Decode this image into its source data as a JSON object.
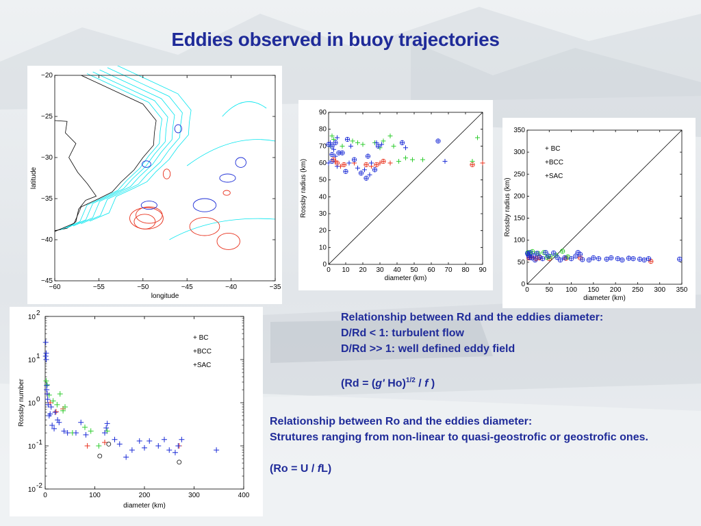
{
  "slide": {
    "title": "Eddies observed in buoy trajectories",
    "note1": {
      "line1": "Relationship between Rd and the eddies diameter:",
      "line2": "D/Rd < 1: turbulent flow",
      "line3": "D/Rd >> 1: well defined eddy field",
      "formula_prefix": "(Rd = (",
      "formula_g": "g'",
      "formula_mid": " Ho)",
      "formula_exp": "1/2",
      "formula_div": " / ",
      "formula_f": "f",
      "formula_end": " )"
    },
    "note2": {
      "line1": "Relationship between Ro and the eddies diameter:",
      "line2": "Strutures ranging from non-linear to quasi-geostrofic or geostrofic ones.",
      "formula_prefix": "(Ro = U / ",
      "formula_f": "f",
      "formula_end": "L)"
    }
  },
  "colors": {
    "BC": "#e8321e",
    "BCC": "#2ecc2e",
    "SAC": "#1a2bd6",
    "title": "#1f2b99",
    "contour": "#00e5ee"
  },
  "chart_data": [
    {
      "type": "map",
      "xlabel": "longitude",
      "ylabel": "latitude",
      "xlim": [
        -60,
        -35
      ],
      "ylim": [
        -45,
        -20
      ],
      "xticks": [
        "−60",
        "−55",
        "−50",
        "−45",
        "−40",
        "−35"
      ],
      "yticks": [
        "−20",
        "−25",
        "−30",
        "−35",
        "−40",
        "−45"
      ],
      "eddies": [
        {
          "group": "BC",
          "lon": -49.6,
          "lat": -37.4,
          "rx": 1.9,
          "ry": 1.3
        },
        {
          "group": "BC",
          "lon": -49.3,
          "lat": -37.0,
          "rx": 1.5,
          "ry": 1.0
        },
        {
          "group": "BC",
          "lon": -49.8,
          "lat": -37.8,
          "rx": 1.2,
          "ry": 0.9
        },
        {
          "group": "BC",
          "lon": -43.0,
          "lat": -38.4,
          "rx": 1.7,
          "ry": 1.1
        },
        {
          "group": "BC",
          "lon": -40.3,
          "lat": -40.2,
          "rx": 1.3,
          "ry": 1.0
        },
        {
          "group": "BC",
          "lon": -47.3,
          "lat": -32.0,
          "rx": 0.4,
          "ry": 0.6
        },
        {
          "group": "BC",
          "lon": -40.5,
          "lat": -34.3,
          "rx": 0.4,
          "ry": 0.3
        },
        {
          "group": "SAC",
          "lon": -49.3,
          "lat": -35.8,
          "rx": 0.9,
          "ry": 0.5
        },
        {
          "group": "SAC",
          "lon": -43.0,
          "lat": -35.8,
          "rx": 1.3,
          "ry": 0.8
        },
        {
          "group": "SAC",
          "lon": -40.4,
          "lat": -32.5,
          "rx": 0.9,
          "ry": 0.5
        },
        {
          "group": "SAC",
          "lon": -38.9,
          "lat": -30.6,
          "rx": 0.6,
          "ry": 0.6
        },
        {
          "group": "SAC",
          "lon": -46.0,
          "lat": -26.5,
          "rx": 0.4,
          "ry": 0.5
        },
        {
          "group": "SAC",
          "lon": -49.6,
          "lat": -30.8,
          "rx": 0.5,
          "ry": 0.4
        }
      ]
    },
    {
      "type": "scatter",
      "xlabel": "diameter (km)",
      "ylabel": "Rossby radius (km)",
      "xlim": [
        0,
        90
      ],
      "ylim": [
        0,
        90
      ],
      "xticks": [
        0,
        10,
        20,
        30,
        40,
        50,
        60,
        70,
        80,
        90
      ],
      "yticks": [
        0,
        10,
        20,
        30,
        40,
        50,
        60,
        70,
        80,
        90
      ],
      "reference_line": "y = x",
      "series": [
        {
          "name": "BC",
          "points": [
            [
              3,
              62
            ],
            [
              4,
              61
            ],
            [
              5,
              60
            ],
            [
              7,
              58
            ],
            [
              22,
              59
            ],
            [
              25,
              58
            ],
            [
              28,
              59
            ],
            [
              30,
              60
            ],
            [
              32,
              61
            ],
            [
              36,
              60
            ],
            [
              84,
              59
            ],
            [
              90,
              60
            ],
            [
              9,
              59
            ],
            [
              15,
              60
            ]
          ]
        },
        {
          "name": "BCC",
          "points": [
            [
              1,
              70
            ],
            [
              2,
              76
            ],
            [
              3,
              74
            ],
            [
              8,
              70
            ],
            [
              14,
              73
            ],
            [
              17,
              72
            ],
            [
              20,
              71
            ],
            [
              27,
              72
            ],
            [
              30,
              69
            ],
            [
              32,
              73
            ],
            [
              38,
              70
            ],
            [
              41,
              61
            ],
            [
              45,
              63
            ],
            [
              49,
              62
            ],
            [
              55,
              62
            ],
            [
              84,
              61
            ],
            [
              87,
              75
            ],
            [
              36,
              76
            ]
          ]
        },
        {
          "name": "SAC",
          "points": [
            [
              0,
              71
            ],
            [
              1,
              72
            ],
            [
              2,
              70
            ],
            [
              3,
              68
            ],
            [
              4,
              72
            ],
            [
              5,
              75
            ],
            [
              2,
              65
            ],
            [
              4,
              64
            ],
            [
              6,
              66
            ],
            [
              0,
              60
            ],
            [
              2,
              61
            ],
            [
              5,
              58
            ],
            [
              10,
              55
            ],
            [
              12,
              60
            ],
            [
              15,
              62
            ],
            [
              17,
              57
            ],
            [
              19,
              54
            ],
            [
              21,
              56
            ],
            [
              23,
              64
            ],
            [
              25,
              60
            ],
            [
              27,
              56
            ],
            [
              28,
              72
            ],
            [
              29,
              70
            ],
            [
              31,
              71
            ],
            [
              22,
              51
            ],
            [
              24,
              53
            ],
            [
              43,
              72
            ],
            [
              45,
              69
            ],
            [
              64,
              73
            ],
            [
              68,
              61
            ],
            [
              11,
              74
            ],
            [
              13,
              70
            ],
            [
              8,
              66
            ]
          ]
        }
      ]
    },
    {
      "type": "scatter",
      "xlabel": "diameter (km)",
      "ylabel": "Rossby radius (km)",
      "xlim": [
        0,
        350
      ],
      "ylim": [
        0,
        350
      ],
      "xticks": [
        0,
        50,
        100,
        150,
        200,
        250,
        300,
        350
      ],
      "yticks": [
        0,
        50,
        100,
        150,
        200,
        250,
        300,
        350
      ],
      "reference_line": "y = x",
      "legend": [
        "+ BC",
        "+BCC",
        "+SAC"
      ],
      "series": [
        {
          "name": "BC",
          "points": [
            [
              4,
              60
            ],
            [
              8,
              62
            ],
            [
              20,
              58
            ],
            [
              28,
              60
            ],
            [
              50,
              58
            ],
            [
              88,
              59
            ],
            [
              120,
              60
            ],
            [
              280,
              52
            ]
          ]
        },
        {
          "name": "BCC",
          "points": [
            [
              2,
              72
            ],
            [
              6,
              70
            ],
            [
              12,
              74
            ],
            [
              25,
              70
            ],
            [
              38,
              72
            ],
            [
              45,
              61
            ],
            [
              52,
              63
            ],
            [
              65,
              66
            ],
            [
              80,
              75
            ],
            [
              92,
              62
            ]
          ]
        },
        {
          "name": "SAC",
          "points": [
            [
              1,
              70
            ],
            [
              3,
              66
            ],
            [
              5,
              61
            ],
            [
              7,
              72
            ],
            [
              10,
              60
            ],
            [
              15,
              64
            ],
            [
              18,
              55
            ],
            [
              22,
              70
            ],
            [
              28,
              62
            ],
            [
              35,
              58
            ],
            [
              42,
              72
            ],
            [
              48,
              64
            ],
            [
              60,
              71
            ],
            [
              68,
              61
            ],
            [
              75,
              55
            ],
            [
              85,
              60
            ],
            [
              100,
              58
            ],
            [
              110,
              64
            ],
            [
              115,
              72
            ],
            [
              120,
              68
            ],
            [
              125,
              56
            ],
            [
              140,
              55
            ],
            [
              150,
              60
            ],
            [
              162,
              58
            ],
            [
              180,
              57
            ],
            [
              190,
              60
            ],
            [
              205,
              58
            ],
            [
              215,
              55
            ],
            [
              230,
              59
            ],
            [
              240,
              58
            ],
            [
              255,
              57
            ],
            [
              265,
              55
            ],
            [
              275,
              58
            ],
            [
              345,
              57
            ]
          ]
        }
      ]
    },
    {
      "type": "scatter",
      "yscale": "log",
      "xlabel": "diameter (km)",
      "ylabel": "Rossby number",
      "xlim": [
        0,
        400
      ],
      "ylim": [
        0.01,
        100
      ],
      "xticks": [
        0,
        100,
        200,
        300,
        400
      ],
      "yticks": [
        {
          "base": "10",
          "exp": "2",
          "v": 100
        },
        {
          "base": "10",
          "exp": "1",
          "v": 10
        },
        {
          "base": "10",
          "exp": "0",
          "v": 1
        },
        {
          "base": "10",
          "exp": "-1",
          "v": 0.1
        },
        {
          "base": "10",
          "exp": "-2",
          "v": 0.01
        }
      ],
      "legend": [
        "+ BC",
        "+BCC",
        "+SAC"
      ],
      "series": [
        {
          "name": "BC",
          "points": [
            [
              4,
              1.6
            ],
            [
              10,
              1.0
            ],
            [
              22,
              0.62
            ],
            [
              36,
              0.72
            ],
            [
              85,
              0.1
            ],
            [
              120,
              0.12
            ],
            [
              270,
              0.1
            ]
          ]
        },
        {
          "name": "BCC",
          "points": [
            [
              2,
              3.2
            ],
            [
              4,
              2.6
            ],
            [
              8,
              1.5
            ],
            [
              16,
              1.1
            ],
            [
              24,
              0.9
            ],
            [
              30,
              1.6
            ],
            [
              36,
              0.65
            ],
            [
              40,
              0.8
            ],
            [
              55,
              0.2
            ],
            [
              80,
              0.27
            ],
            [
              92,
              0.22
            ],
            [
              108,
              0.1
            ],
            [
              125,
              0.22
            ]
          ]
        },
        {
          "name": "SAC",
          "points": [
            [
              1,
              25
            ],
            [
              1,
              12
            ],
            [
              2,
              10
            ],
            [
              2,
              14
            ],
            [
              3,
              2.5
            ],
            [
              3,
              2.0
            ],
            [
              4,
              1.6
            ],
            [
              5,
              1.2
            ],
            [
              6,
              0.9
            ],
            [
              8,
              0.5
            ],
            [
              10,
              0.55
            ],
            [
              12,
              0.8
            ],
            [
              14,
              0.3
            ],
            [
              18,
              0.25
            ],
            [
              20,
              0.6
            ],
            [
              25,
              0.4
            ],
            [
              28,
              0.35
            ],
            [
              38,
              0.22
            ],
            [
              45,
              0.2
            ],
            [
              62,
              0.2
            ],
            [
              72,
              0.35
            ],
            [
              82,
              0.18
            ],
            [
              120,
              0.2
            ],
            [
              123,
              0.26
            ],
            [
              125,
              0.33
            ],
            [
              140,
              0.14
            ],
            [
              150,
              0.11
            ],
            [
              163,
              0.055
            ],
            [
              175,
              0.08
            ],
            [
              190,
              0.13
            ],
            [
              200,
              0.09
            ],
            [
              210,
              0.13
            ],
            [
              228,
              0.1
            ],
            [
              240,
              0.14
            ],
            [
              250,
              0.08
            ],
            [
              262,
              0.07
            ],
            [
              268,
              0.1
            ],
            [
              275,
              0.14
            ],
            [
              345,
              0.08
            ]
          ]
        },
        {
          "name": "",
          "marker": "circle",
          "points": [
            [
              110,
              0.058
            ],
            [
              128,
              0.11
            ],
            [
              270,
              0.042
            ]
          ]
        }
      ]
    }
  ]
}
